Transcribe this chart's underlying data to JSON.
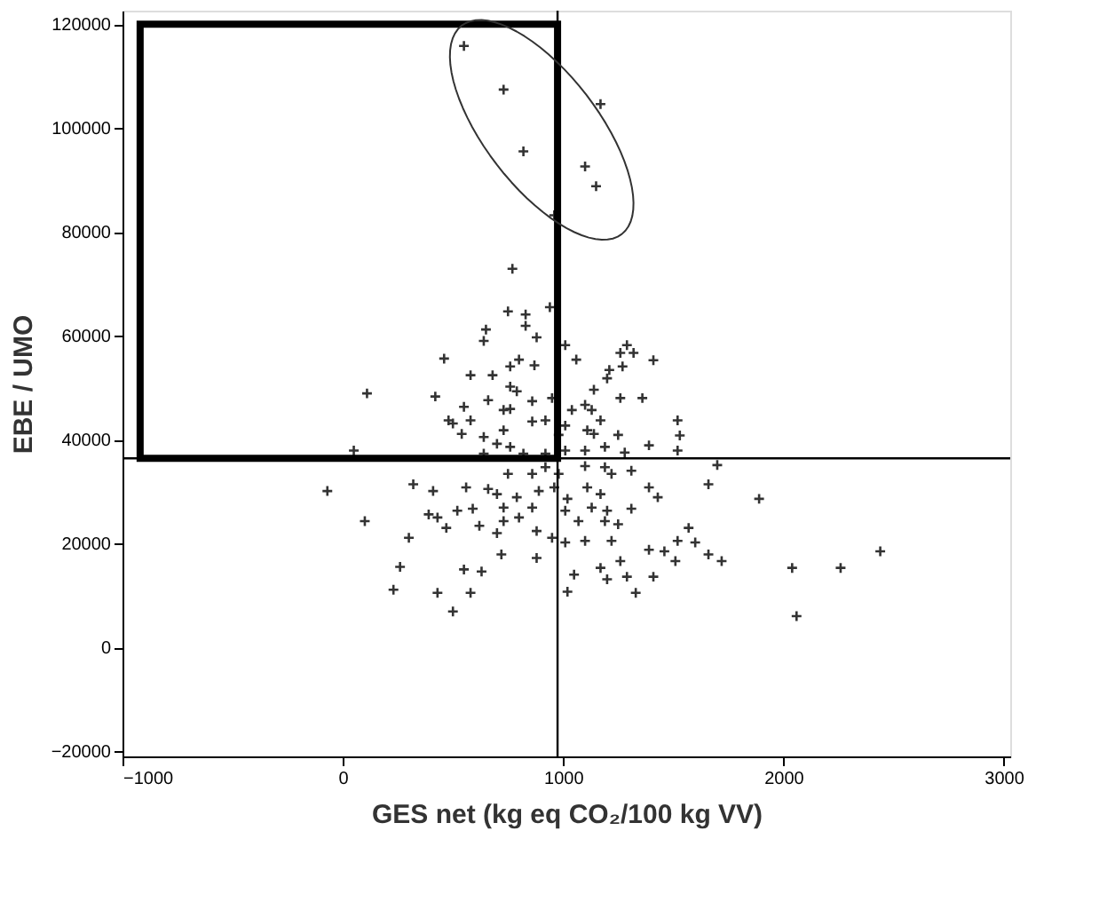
{
  "chart_data": {
    "type": "scatter",
    "xlabel": "GES net (kg eq CO₂/100 kg VV)",
    "ylabel": "EBE / UMO",
    "xlim": [
      -1000,
      3030
    ],
    "ylim": [
      -21000,
      122600
    ],
    "xticks": [
      -1000,
      0,
      1000,
      2000,
      3000
    ],
    "yticks": [
      -20000,
      0,
      20000,
      40000,
      60000,
      80000,
      100000,
      120000
    ],
    "grid": false,
    "marker": "cross",
    "ref_lines": [
      {
        "axis": "x",
        "value": 975,
        "color": "#000000"
      },
      {
        "axis": "y",
        "value": 36400,
        "color": "#000000"
      }
    ],
    "series": [
      {
        "color": "#333333",
        "x": [
          550,
          730,
          820,
          1170,
          1100,
          1150,
          960,
          770,
          750,
          830,
          940,
          650,
          640,
          830,
          880,
          1010,
          1290,
          1320,
          1260,
          1410,
          1060,
          1210,
          1200,
          1270,
          460,
          580,
          680,
          760,
          800,
          870,
          760,
          790,
          110,
          420,
          550,
          660,
          860,
          950,
          1140,
          1260,
          1360,
          1520,
          1530,
          1520,
          1390,
          1100,
          1040,
          1130,
          730,
          760,
          480,
          500,
          580,
          540,
          640,
          730,
          860,
          920,
          1010,
          1110,
          1170,
          1140,
          1250,
          980,
          700,
          760,
          820,
          920,
          1010,
          1100,
          1190,
          1280,
          50,
          640,
          -70,
          320,
          410,
          560,
          660,
          750,
          860,
          920,
          980,
          1100,
          1190,
          1220,
          1310,
          1390,
          1430,
          1660,
          1700,
          1890,
          700,
          790,
          890,
          960,
          1020,
          1110,
          1170,
          1010,
          1130,
          1200,
          1310,
          390,
          430,
          520,
          590,
          730,
          860,
          730,
          800,
          1070,
          1190,
          1250,
          100,
          470,
          620,
          700,
          880,
          950,
          300,
          1010,
          1100,
          1220,
          1390,
          1460,
          1520,
          1570,
          1600,
          1660,
          1720,
          1510,
          2440,
          2260,
          2040,
          2060,
          720,
          880,
          1260,
          260,
          550,
          630,
          1050,
          1170,
          1200,
          1290,
          1410,
          230,
          430,
          580,
          1020,
          1330,
          500
        ],
        "values": [
          115800,
          107400,
          95500,
          104600,
          92600,
          88800,
          83200,
          72900,
          64700,
          64100,
          65500,
          61200,
          59000,
          61900,
          59700,
          58200,
          58200,
          56700,
          56700,
          55300,
          55400,
          53400,
          51800,
          54100,
          55600,
          52400,
          52400,
          54100,
          55400,
          54300,
          50200,
          49300,
          48900,
          48300,
          46300,
          47600,
          47400,
          48000,
          49600,
          48000,
          48000,
          43700,
          40800,
          37900,
          38900,
          46700,
          45700,
          45700,
          45700,
          45900,
          43700,
          43100,
          43700,
          41100,
          40500,
          41800,
          43500,
          43700,
          42700,
          41800,
          43700,
          41100,
          40900,
          40900,
          39200,
          38600,
          37300,
          37300,
          37900,
          37900,
          38600,
          37500,
          37900,
          37300,
          30100,
          31400,
          30100,
          30800,
          30500,
          33400,
          33400,
          34700,
          33400,
          34900,
          34700,
          33400,
          34000,
          30800,
          28900,
          31400,
          35100,
          28600,
          29500,
          28900,
          30100,
          30800,
          28600,
          30800,
          29500,
          26300,
          26900,
          26300,
          26700,
          25600,
          25000,
          26300,
          26700,
          26900,
          26900,
          24300,
          25000,
          24300,
          24300,
          23700,
          24300,
          23000,
          23400,
          22000,
          22400,
          21100,
          21100,
          20200,
          20500,
          20500,
          18800,
          18500,
          20500,
          23000,
          20200,
          17900,
          16600,
          16600,
          18500,
          15300,
          15300,
          6000,
          17900,
          17200,
          16600,
          15500,
          15000,
          14600,
          14000,
          15300,
          13100,
          13600,
          13600,
          11100,
          10500,
          10500,
          10700,
          10500,
          6900
        ]
      }
    ]
  }
}
